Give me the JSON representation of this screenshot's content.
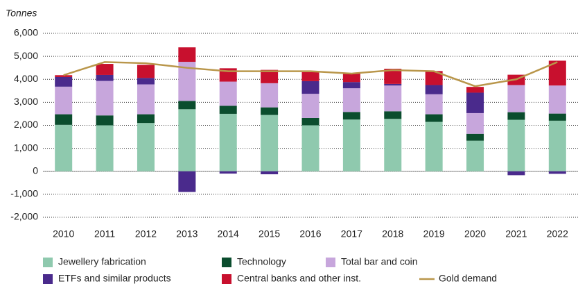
{
  "chart_data": {
    "type": "bar",
    "stacked": true,
    "y_label": "Tonnes",
    "categories": [
      "2010",
      "2011",
      "2012",
      "2013",
      "2014",
      "2015",
      "2016",
      "2017",
      "2018",
      "2019",
      "2020",
      "2021",
      "2022"
    ],
    "series": [
      {
        "name": "Jewellery fabrication",
        "color": "#8fc9ae",
        "values": [
          2020,
          2000,
          2100,
          2700,
          2500,
          2450,
          2000,
          2250,
          2280,
          2150,
          1330,
          2240,
          2200
        ]
      },
      {
        "name": "Technology",
        "color": "#0b4d2e",
        "values": [
          460,
          430,
          380,
          360,
          350,
          330,
          320,
          330,
          330,
          330,
          300,
          330,
          310
        ]
      },
      {
        "name": "Total bar and coin",
        "color": "#c7a6dc",
        "values": [
          1200,
          1500,
          1300,
          1700,
          1050,
          1050,
          1050,
          1030,
          1120,
          870,
          900,
          1180,
          1220
        ]
      },
      {
        "name": "ETFs and similar products",
        "color": "#4a2a8c",
        "values": [
          420,
          260,
          280,
          -900,
          -100,
          -130,
          550,
          270,
          70,
          400,
          890,
          -170,
          -110
        ]
      },
      {
        "name": "Central banks and other inst.",
        "color": "#c8102e",
        "values": [
          80,
          480,
          570,
          630,
          580,
          580,
          390,
          380,
          660,
          610,
          250,
          450,
          1080
        ]
      },
      {
        "name": "Gold demand",
        "color": "#b9964a",
        "type": "line",
        "values": [
          4180,
          4750,
          4700,
          4500,
          4350,
          4350,
          4350,
          4250,
          4400,
          4350,
          3700,
          4000,
          4750
        ]
      }
    ],
    "ylim": [
      -2000,
      6000
    ],
    "yticks": [
      {
        "value": -2000,
        "label": "-2,000"
      },
      {
        "value": -1000,
        "label": "-1,000"
      },
      0,
      {
        "value": 1000,
        "label": "1,000"
      },
      {
        "value": 2000,
        "label": "2,000"
      },
      {
        "value": 3000,
        "label": "3,000"
      },
      {
        "value": 4000,
        "label": "4,000"
      },
      {
        "value": 5000,
        "label": "5,000"
      },
      {
        "value": 6000,
        "label": "6,000"
      }
    ],
    "grid": true
  }
}
